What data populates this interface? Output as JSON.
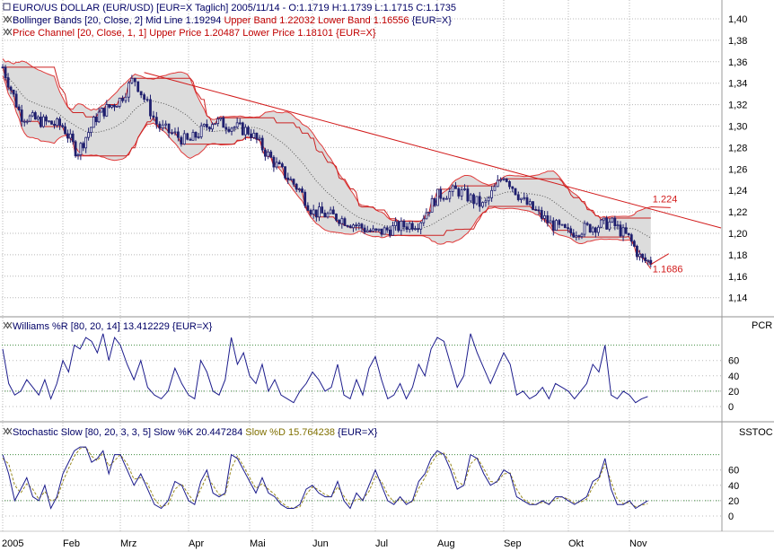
{
  "colors": {
    "background": "#ffffff",
    "grid": "#b8b8b8",
    "candle": "#1f1f6e",
    "band_fill": "#dcdcdc",
    "bollinger_outline": "#e03a3a",
    "price_channel": "#cc2222",
    "midline": "#555555",
    "trendline": "#d21a1a",
    "williams": "#1c1c8c",
    "stoch_k": "#1c1c8c",
    "stoch_d": "#9a8a20",
    "legend_black": "#000066",
    "legend_red": "#c00000",
    "legend_olive": "#807000",
    "separator": "#c8c8c8"
  },
  "panels": {
    "price": {
      "legend": [
        {
          "icon": "chart-icon",
          "parts": [
            {
              "text": "EURO/US DOLLAR (EUR/USD) [EUR=X  Taglich] 2005/11/14 - O:1.1719 H:1.1739 L:1.1715 C:1.1735",
              "color": "legend_black"
            }
          ]
        },
        {
          "icon": "indicator-icon",
          "parts": [
            {
              "text": "Bollinger Bands [20, Close, 2] Mid Line 1.19294 ",
              "color": "legend_black"
            },
            {
              "text": "Upper Band 1.22032 Lower Band 1.16556 ",
              "color": "legend_red"
            },
            {
              "text": "{EUR=X}",
              "color": "legend_black"
            }
          ]
        },
        {
          "icon": "indicator-icon",
          "parts": [
            {
              "text": "Price Channel [20, Close, 1, 1] Upper Price 1.20487 Lower Price 1.18101 {EUR=X}",
              "color": "legend_red"
            }
          ]
        }
      ],
      "annotations": {
        "upper": "1.224",
        "lower": "1.1686"
      }
    },
    "williams": {
      "side_label": "PCR",
      "legend": [
        {
          "icon": "indicator-icon",
          "parts": [
            {
              "text": "Williams %R [80, 20, 14] 13.412229 {EUR=X}",
              "color": "legend_black"
            }
          ]
        }
      ]
    },
    "stochastic": {
      "side_label": "SSTOC",
      "legend": [
        {
          "icon": "indicator-icon",
          "parts": [
            {
              "text": "Stochastic Slow [80, 20, 3, 3, 5] Slow %K 20.447284 ",
              "color": "legend_black"
            },
            {
              "text": "Slow %D 15.764238 ",
              "color": "legend_olive"
            },
            {
              "text": "{EUR=X}",
              "color": "legend_black"
            }
          ]
        }
      ]
    }
  },
  "chart_data": [
    {
      "type": "candlestick",
      "title": "EURO/US DOLLAR (EUR/USD)",
      "x_tick_labels": [
        "2005",
        "Feb",
        "Mrz",
        "Apr",
        "Mai",
        "Jun",
        "Jul",
        "Aug",
        "Sep",
        "Okt",
        "Nov"
      ],
      "y_tick_labels": [
        "1,40",
        "1,38",
        "1,36",
        "1,34",
        "1,32",
        "1,30",
        "1,28",
        "1,26",
        "1,24",
        "1,22",
        "1,20",
        "1,18",
        "1,16",
        "1,14"
      ],
      "ylim": [
        1.13,
        1.41
      ],
      "grid": true,
      "close_by_month": [
        {
          "month": "2005-01",
          "x": 0.0,
          "close": 1.355
        },
        {
          "month": "2005-01",
          "x": 0.3,
          "close": 1.31
        },
        {
          "month": "2005-01",
          "x": 0.6,
          "close": 1.305
        },
        {
          "month": "2005-02",
          "x": 1.0,
          "close": 1.3
        },
        {
          "month": "2005-02",
          "x": 1.25,
          "close": 1.275
        },
        {
          "month": "2005-02",
          "x": 1.6,
          "close": 1.31
        },
        {
          "month": "2005-03",
          "x": 2.0,
          "close": 1.325
        },
        {
          "month": "2005-03",
          "x": 2.2,
          "close": 1.345
        },
        {
          "month": "2005-03",
          "x": 2.55,
          "close": 1.3
        },
        {
          "month": "2005-04",
          "x": 3.0,
          "close": 1.285
        },
        {
          "month": "2005-04",
          "x": 3.4,
          "close": 1.305
        },
        {
          "month": "2005-04",
          "x": 3.7,
          "close": 1.3
        },
        {
          "month": "2005-05",
          "x": 4.0,
          "close": 1.295
        },
        {
          "month": "2005-05",
          "x": 4.4,
          "close": 1.265
        },
        {
          "month": "2005-05",
          "x": 4.8,
          "close": 1.24
        },
        {
          "month": "2005-06",
          "x": 5.0,
          "close": 1.22
        },
        {
          "month": "2005-06",
          "x": 5.4,
          "close": 1.215
        },
        {
          "month": "2005-06",
          "x": 5.8,
          "close": 1.205
        },
        {
          "month": "2005-07",
          "x": 6.0,
          "close": 1.2
        },
        {
          "month": "2005-07",
          "x": 6.3,
          "close": 1.205
        },
        {
          "month": "2005-07",
          "x": 6.7,
          "close": 1.21
        },
        {
          "month": "2005-08",
          "x": 7.0,
          "close": 1.235
        },
        {
          "month": "2005-08",
          "x": 7.3,
          "close": 1.24
        },
        {
          "month": "2005-08",
          "x": 7.7,
          "close": 1.225
        },
        {
          "month": "2005-09",
          "x": 8.0,
          "close": 1.255
        },
        {
          "month": "2005-09",
          "x": 8.3,
          "close": 1.23
        },
        {
          "month": "2005-09",
          "x": 8.7,
          "close": 1.21
        },
        {
          "month": "2005-10",
          "x": 9.0,
          "close": 1.2
        },
        {
          "month": "2005-10",
          "x": 9.3,
          "close": 1.205
        },
        {
          "month": "2005-10",
          "x": 9.7,
          "close": 1.21
        },
        {
          "month": "2005-11",
          "x": 10.0,
          "close": 1.195
        },
        {
          "month": "2005-11",
          "x": 10.2,
          "close": 1.175
        },
        {
          "month": "2005-11",
          "x": 10.35,
          "close": 1.1735
        }
      ],
      "trendline": {
        "from": {
          "x": 2.35,
          "y": 1.35
        },
        "to": {
          "x": 11.5,
          "y": 1.205
        }
      },
      "annotations": [
        {
          "text": "1.224",
          "value": 1.224
        },
        {
          "text": "1.1686",
          "value": 1.1686
        }
      ]
    },
    {
      "type": "line",
      "title": "Williams %R [80, 20, 14]",
      "y_tick_labels": [
        "60",
        "40",
        "20",
        "0"
      ],
      "ylim": [
        -5,
        105
      ],
      "reference_lines": [
        80,
        20
      ],
      "series": [
        {
          "name": "Williams %R",
          "x": [
            0.0,
            0.1,
            0.2,
            0.3,
            0.4,
            0.5,
            0.6,
            0.7,
            0.8,
            0.9,
            1.0,
            1.1,
            1.2,
            1.3,
            1.4,
            1.5,
            1.6,
            1.7,
            1.8,
            1.9,
            2.0,
            2.1,
            2.2,
            2.3,
            2.4,
            2.5,
            2.6,
            2.7,
            2.8,
            2.9,
            3.0,
            3.1,
            3.2,
            3.3,
            3.4,
            3.5,
            3.6,
            3.7,
            3.8,
            3.9,
            4.0,
            4.1,
            4.2,
            4.3,
            4.4,
            4.5,
            4.6,
            4.7,
            4.8,
            4.9,
            5.0,
            5.1,
            5.2,
            5.3,
            5.4,
            5.5,
            5.6,
            5.7,
            5.8,
            5.9,
            6.0,
            6.1,
            6.2,
            6.3,
            6.4,
            6.5,
            6.6,
            6.7,
            6.8,
            6.9,
            7.0,
            7.1,
            7.2,
            7.3,
            7.4,
            7.5,
            7.6,
            7.7,
            7.8,
            7.9,
            8.0,
            8.1,
            8.2,
            8.3,
            8.4,
            8.5,
            8.6,
            8.7,
            8.8,
            8.9,
            9.0,
            9.1,
            9.2,
            9.3,
            9.4,
            9.5,
            9.6,
            9.7,
            9.8,
            9.9,
            10.0,
            10.1,
            10.2,
            10.3
          ],
          "values": [
            75,
            30,
            15,
            20,
            35,
            25,
            15,
            35,
            10,
            30,
            60,
            45,
            80,
            75,
            90,
            85,
            70,
            95,
            60,
            90,
            80,
            55,
            35,
            60,
            25,
            15,
            10,
            20,
            50,
            30,
            15,
            10,
            60,
            45,
            20,
            15,
            35,
            90,
            55,
            70,
            40,
            30,
            55,
            20,
            35,
            15,
            10,
            5,
            20,
            30,
            45,
            35,
            20,
            25,
            55,
            15,
            10,
            35,
            15,
            50,
            65,
            35,
            10,
            15,
            30,
            10,
            25,
            55,
            40,
            75,
            90,
            85,
            55,
            25,
            40,
            95,
            70,
            50,
            30,
            50,
            70,
            55,
            15,
            20,
            10,
            15,
            25,
            10,
            30,
            25,
            20,
            10,
            20,
            30,
            55,
            45,
            80,
            15,
            10,
            20,
            15,
            5,
            10,
            13
          ]
        }
      ]
    },
    {
      "type": "line",
      "title": "Stochastic Slow [80, 20, 3, 3, 5]",
      "y_tick_labels": [
        "60",
        "40",
        "20",
        "0"
      ],
      "ylim": [
        -5,
        105
      ],
      "reference_lines": [
        80,
        20
      ],
      "series": [
        {
          "name": "Slow %K",
          "x": [
            0.0,
            0.1,
            0.2,
            0.3,
            0.4,
            0.5,
            0.6,
            0.7,
            0.8,
            0.9,
            1.0,
            1.1,
            1.2,
            1.3,
            1.4,
            1.5,
            1.6,
            1.7,
            1.8,
            1.9,
            2.0,
            2.1,
            2.2,
            2.3,
            2.4,
            2.5,
            2.6,
            2.7,
            2.8,
            2.9,
            3.0,
            3.1,
            3.2,
            3.3,
            3.4,
            3.5,
            3.6,
            3.7,
            3.8,
            3.9,
            4.0,
            4.1,
            4.2,
            4.3,
            4.4,
            4.5,
            4.6,
            4.7,
            4.8,
            4.9,
            5.0,
            5.1,
            5.2,
            5.3,
            5.4,
            5.5,
            5.6,
            5.7,
            5.8,
            5.9,
            6.0,
            6.1,
            6.2,
            6.3,
            6.4,
            6.5,
            6.6,
            6.7,
            6.8,
            6.9,
            7.0,
            7.1,
            7.2,
            7.3,
            7.4,
            7.5,
            7.6,
            7.7,
            7.8,
            7.9,
            8.0,
            8.1,
            8.2,
            8.3,
            8.4,
            8.5,
            8.6,
            8.7,
            8.8,
            8.9,
            9.0,
            9.1,
            9.2,
            9.3,
            9.4,
            9.5,
            9.6,
            9.7,
            9.8,
            9.9,
            10.0,
            10.1,
            10.2,
            10.3
          ],
          "values": [
            80,
            55,
            20,
            35,
            50,
            25,
            20,
            40,
            10,
            25,
            55,
            70,
            85,
            90,
            90,
            70,
            75,
            85,
            55,
            80,
            80,
            60,
            40,
            55,
            35,
            15,
            10,
            20,
            45,
            40,
            20,
            15,
            45,
            60,
            30,
            25,
            30,
            80,
            75,
            60,
            45,
            30,
            50,
            30,
            25,
            15,
            10,
            10,
            15,
            35,
            40,
            30,
            25,
            25,
            45,
            20,
            10,
            30,
            20,
            40,
            60,
            40,
            20,
            15,
            25,
            15,
            20,
            45,
            55,
            75,
            85,
            80,
            60,
            35,
            40,
            80,
            75,
            55,
            40,
            45,
            60,
            55,
            25,
            20,
            15,
            15,
            20,
            15,
            25,
            25,
            20,
            15,
            20,
            25,
            45,
            50,
            75,
            35,
            15,
            15,
            20,
            10,
            15,
            20
          ]
        },
        {
          "name": "Slow %D",
          "x": [
            0.0,
            0.1,
            0.2,
            0.3,
            0.4,
            0.5,
            0.6,
            0.7,
            0.8,
            0.9,
            1.0,
            1.1,
            1.2,
            1.3,
            1.4,
            1.5,
            1.6,
            1.7,
            1.8,
            1.9,
            2.0,
            2.1,
            2.2,
            2.3,
            2.4,
            2.5,
            2.6,
            2.7,
            2.8,
            2.9,
            3.0,
            3.1,
            3.2,
            3.3,
            3.4,
            3.5,
            3.6,
            3.7,
            3.8,
            3.9,
            4.0,
            4.1,
            4.2,
            4.3,
            4.4,
            4.5,
            4.6,
            4.7,
            4.8,
            4.9,
            5.0,
            5.1,
            5.2,
            5.3,
            5.4,
            5.5,
            5.6,
            5.7,
            5.8,
            5.9,
            6.0,
            6.1,
            6.2,
            6.3,
            6.4,
            6.5,
            6.6,
            6.7,
            6.8,
            6.9,
            7.0,
            7.1,
            7.2,
            7.3,
            7.4,
            7.5,
            7.6,
            7.7,
            7.8,
            7.9,
            8.0,
            8.1,
            8.2,
            8.3,
            8.4,
            8.5,
            8.6,
            8.7,
            8.8,
            8.9,
            9.0,
            9.1,
            9.2,
            9.3,
            9.4,
            9.5,
            9.6,
            9.7,
            9.8,
            9.9,
            10.0,
            10.1,
            10.2,
            10.3
          ],
          "values": [
            75,
            68,
            40,
            30,
            42,
            35,
            22,
            32,
            20,
            22,
            45,
            62,
            78,
            88,
            90,
            78,
            72,
            82,
            65,
            72,
            80,
            68,
            48,
            50,
            42,
            22,
            12,
            15,
            35,
            42,
            28,
            18,
            35,
            52,
            40,
            28,
            28,
            62,
            78,
            65,
            50,
            36,
            42,
            35,
            28,
            18,
            12,
            10,
            12,
            28,
            38,
            34,
            28,
            25,
            38,
            26,
            14,
            22,
            22,
            32,
            52,
            45,
            28,
            18,
            22,
            18,
            18,
            36,
            50,
            68,
            80,
            82,
            68,
            45,
            40,
            68,
            76,
            62,
            45,
            44,
            55,
            56,
            35,
            22,
            17,
            15,
            18,
            16,
            22,
            25,
            22,
            17,
            18,
            22,
            38,
            48,
            68,
            45,
            22,
            16,
            18,
            12,
            14,
            16
          ]
        }
      ]
    }
  ]
}
